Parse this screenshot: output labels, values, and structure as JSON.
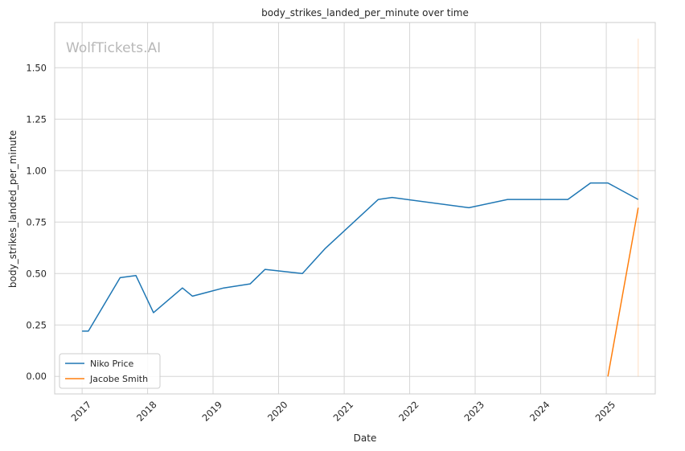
{
  "chart_data": {
    "type": "line",
    "title": "body_strikes_landed_per_minute over time",
    "xlabel": "Date",
    "ylabel": "body_strikes_landed_per_minute",
    "watermark": "WolfTickets.AI",
    "x_type": "date",
    "xlim": [
      "2016-08-01",
      "2025-10-01"
    ],
    "ylim": [
      -0.085,
      1.72
    ],
    "x_ticks": [
      "2017",
      "2018",
      "2019",
      "2020",
      "2021",
      "2022",
      "2023",
      "2024",
      "2025"
    ],
    "y_ticks": [
      "0.00",
      "0.25",
      "0.50",
      "0.75",
      "1.00",
      "1.25",
      "1.50"
    ],
    "grid": true,
    "legend_position": "lower-left",
    "series": [
      {
        "name": "Niko Price",
        "color": "#1f77b4",
        "points": [
          {
            "x": "2017-01-01",
            "y": 0.22
          },
          {
            "x": "2017-02-05",
            "y": 0.22
          },
          {
            "x": "2017-08-01",
            "y": 0.48
          },
          {
            "x": "2017-10-28",
            "y": 0.49
          },
          {
            "x": "2018-02-03",
            "y": 0.31
          },
          {
            "x": "2018-07-14",
            "y": 0.43
          },
          {
            "x": "2018-09-08",
            "y": 0.39
          },
          {
            "x": "2019-03-01",
            "y": 0.43
          },
          {
            "x": "2019-07-27",
            "y": 0.45
          },
          {
            "x": "2019-10-18",
            "y": 0.52
          },
          {
            "x": "2020-05-13",
            "y": 0.5
          },
          {
            "x": "2020-09-15",
            "y": 0.62
          },
          {
            "x": "2021-07-10",
            "y": 0.86
          },
          {
            "x": "2021-09-25",
            "y": 0.87
          },
          {
            "x": "2022-11-27",
            "y": 0.82
          },
          {
            "x": "2023-07-01",
            "y": 0.86
          },
          {
            "x": "2024-06-01",
            "y": 0.86
          },
          {
            "x": "2024-10-05",
            "y": 0.94
          },
          {
            "x": "2025-01-10",
            "y": 0.94
          },
          {
            "x": "2025-06-28",
            "y": 0.86
          }
        ]
      },
      {
        "name": "Jacobe Smith",
        "color": "#ff7f0e",
        "points": [
          {
            "x": "2025-01-10",
            "y": 0.0
          },
          {
            "x": "2025-06-28",
            "y": 0.82
          }
        ]
      }
    ]
  }
}
